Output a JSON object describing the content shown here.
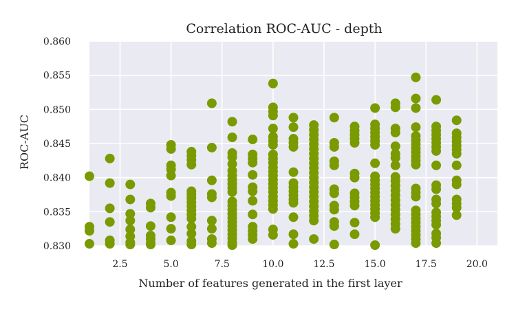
{
  "chart_data": {
    "type": "scatter",
    "title": "Correlation ROC-AUC - depth",
    "xlabel": "Number of features generated in the first layer",
    "ylabel": "ROC-AUC",
    "xlim": [
      1.0,
      21.0
    ],
    "ylim": [
      0.83,
      0.86
    ],
    "xticks": [
      2.5,
      5.0,
      7.5,
      10.0,
      12.5,
      15.0,
      17.5,
      20.0
    ],
    "xtick_labels": [
      "2.5",
      "5.0",
      "7.5",
      "10.0",
      "12.5",
      "15.0",
      "17.5",
      "20.0"
    ],
    "yticks": [
      0.83,
      0.835,
      0.84,
      0.845,
      0.85,
      0.855,
      0.86
    ],
    "ytick_labels": [
      "0.830",
      "0.835",
      "0.840",
      "0.845",
      "0.850",
      "0.855",
      "0.860"
    ],
    "grid": true,
    "background": "#eaeaf2",
    "marker_color": "#7a9a01",
    "points": [
      {
        "x": 1,
        "y": 0.8402
      },
      {
        "x": 1,
        "y": 0.8328
      },
      {
        "x": 1,
        "y": 0.8322
      },
      {
        "x": 1,
        "y": 0.8303
      },
      {
        "x": 2,
        "y": 0.8428
      },
      {
        "x": 2,
        "y": 0.8392
      },
      {
        "x": 2,
        "y": 0.8355
      },
      {
        "x": 2,
        "y": 0.8335
      },
      {
        "x": 2,
        "y": 0.8308
      },
      {
        "x": 2,
        "y": 0.8303
      },
      {
        "x": 3,
        "y": 0.839
      },
      {
        "x": 3,
        "y": 0.8368
      },
      {
        "x": 3,
        "y": 0.8347
      },
      {
        "x": 3,
        "y": 0.8337
      },
      {
        "x": 3,
        "y": 0.8324
      },
      {
        "x": 3,
        "y": 0.8314
      },
      {
        "x": 3,
        "y": 0.8305
      },
      {
        "x": 3,
        "y": 0.8302
      },
      {
        "x": 4,
        "y": 0.8362
      },
      {
        "x": 4,
        "y": 0.8356
      },
      {
        "x": 4,
        "y": 0.8329
      },
      {
        "x": 4,
        "y": 0.8315
      },
      {
        "x": 4,
        "y": 0.831
      },
      {
        "x": 4,
        "y": 0.8304
      },
      {
        "x": 4,
        "y": 0.8302
      },
      {
        "x": 5,
        "y": 0.8448
      },
      {
        "x": 5,
        "y": 0.8442
      },
      {
        "x": 5,
        "y": 0.8418
      },
      {
        "x": 5,
        "y": 0.8412
      },
      {
        "x": 5,
        "y": 0.8403
      },
      {
        "x": 5,
        "y": 0.8378
      },
      {
        "x": 5,
        "y": 0.8373
      },
      {
        "x": 5,
        "y": 0.8342
      },
      {
        "x": 5,
        "y": 0.8325
      },
      {
        "x": 5,
        "y": 0.8308
      },
      {
        "x": 6,
        "y": 0.8438
      },
      {
        "x": 6,
        "y": 0.8432
      },
      {
        "x": 6,
        "y": 0.8426
      },
      {
        "x": 6,
        "y": 0.8419
      },
      {
        "x": 6,
        "y": 0.838
      },
      {
        "x": 6,
        "y": 0.8375
      },
      {
        "x": 6,
        "y": 0.837
      },
      {
        "x": 6,
        "y": 0.8364
      },
      {
        "x": 6,
        "y": 0.8358
      },
      {
        "x": 6,
        "y": 0.8352
      },
      {
        "x": 6,
        "y": 0.8346
      },
      {
        "x": 6,
        "y": 0.834
      },
      {
        "x": 6,
        "y": 0.8328
      },
      {
        "x": 6,
        "y": 0.8318
      },
      {
        "x": 6,
        "y": 0.8307
      },
      {
        "x": 6,
        "y": 0.8302
      },
      {
        "x": 7,
        "y": 0.8509
      },
      {
        "x": 7,
        "y": 0.8444
      },
      {
        "x": 7,
        "y": 0.8396
      },
      {
        "x": 7,
        "y": 0.8376
      },
      {
        "x": 7,
        "y": 0.8371
      },
      {
        "x": 7,
        "y": 0.8337
      },
      {
        "x": 7,
        "y": 0.8325
      },
      {
        "x": 7,
        "y": 0.831
      },
      {
        "x": 7,
        "y": 0.8304
      },
      {
        "x": 8,
        "y": 0.8482
      },
      {
        "x": 8,
        "y": 0.8459
      },
      {
        "x": 8,
        "y": 0.8436
      },
      {
        "x": 8,
        "y": 0.843
      },
      {
        "x": 8,
        "y": 0.842
      },
      {
        "x": 8,
        "y": 0.841
      },
      {
        "x": 8,
        "y": 0.8403
      },
      {
        "x": 8,
        "y": 0.8397
      },
      {
        "x": 8,
        "y": 0.8391
      },
      {
        "x": 8,
        "y": 0.8385
      },
      {
        "x": 8,
        "y": 0.8379
      },
      {
        "x": 8,
        "y": 0.8365
      },
      {
        "x": 8,
        "y": 0.8359
      },
      {
        "x": 8,
        "y": 0.8353
      },
      {
        "x": 8,
        "y": 0.8347
      },
      {
        "x": 8,
        "y": 0.8341
      },
      {
        "x": 8,
        "y": 0.8335
      },
      {
        "x": 8,
        "y": 0.8329
      },
      {
        "x": 8,
        "y": 0.8323
      },
      {
        "x": 8,
        "y": 0.8317
      },
      {
        "x": 8,
        "y": 0.8311
      },
      {
        "x": 8,
        "y": 0.8305
      },
      {
        "x": 8,
        "y": 0.8301
      },
      {
        "x": 9,
        "y": 0.8456
      },
      {
        "x": 9,
        "y": 0.8434
      },
      {
        "x": 9,
        "y": 0.8428
      },
      {
        "x": 9,
        "y": 0.8422
      },
      {
        "x": 9,
        "y": 0.8404
      },
      {
        "x": 9,
        "y": 0.8386
      },
      {
        "x": 9,
        "y": 0.838
      },
      {
        "x": 9,
        "y": 0.8366
      },
      {
        "x": 9,
        "y": 0.8346
      },
      {
        "x": 9,
        "y": 0.8328
      },
      {
        "x": 9,
        "y": 0.8322
      },
      {
        "x": 9,
        "y": 0.8316
      },
      {
        "x": 9,
        "y": 0.831
      },
      {
        "x": 10,
        "y": 0.8538
      },
      {
        "x": 10,
        "y": 0.8503
      },
      {
        "x": 10,
        "y": 0.8497
      },
      {
        "x": 10,
        "y": 0.8491
      },
      {
        "x": 10,
        "y": 0.8472
      },
      {
        "x": 10,
        "y": 0.846
      },
      {
        "x": 10,
        "y": 0.8454
      },
      {
        "x": 10,
        "y": 0.8448
      },
      {
        "x": 10,
        "y": 0.8434
      },
      {
        "x": 10,
        "y": 0.8428
      },
      {
        "x": 10,
        "y": 0.8422
      },
      {
        "x": 10,
        "y": 0.8415
      },
      {
        "x": 10,
        "y": 0.8409
      },
      {
        "x": 10,
        "y": 0.8403
      },
      {
        "x": 10,
        "y": 0.8397
      },
      {
        "x": 10,
        "y": 0.8391
      },
      {
        "x": 10,
        "y": 0.8385
      },
      {
        "x": 10,
        "y": 0.8379
      },
      {
        "x": 10,
        "y": 0.8372
      },
      {
        "x": 10,
        "y": 0.8366
      },
      {
        "x": 10,
        "y": 0.836
      },
      {
        "x": 10,
        "y": 0.8354
      },
      {
        "x": 10,
        "y": 0.8324
      },
      {
        "x": 10,
        "y": 0.8316
      },
      {
        "x": 11,
        "y": 0.8488
      },
      {
        "x": 11,
        "y": 0.8474
      },
      {
        "x": 11,
        "y": 0.8457
      },
      {
        "x": 11,
        "y": 0.8451
      },
      {
        "x": 11,
        "y": 0.8445
      },
      {
        "x": 11,
        "y": 0.8408
      },
      {
        "x": 11,
        "y": 0.8392
      },
      {
        "x": 11,
        "y": 0.8386
      },
      {
        "x": 11,
        "y": 0.838
      },
      {
        "x": 11,
        "y": 0.8374
      },
      {
        "x": 11,
        "y": 0.8368
      },
      {
        "x": 11,
        "y": 0.8363
      },
      {
        "x": 11,
        "y": 0.8342
      },
      {
        "x": 11,
        "y": 0.8317
      },
      {
        "x": 11,
        "y": 0.8303
      },
      {
        "x": 12,
        "y": 0.8477
      },
      {
        "x": 12,
        "y": 0.847
      },
      {
        "x": 12,
        "y": 0.8463
      },
      {
        "x": 12,
        "y": 0.8456
      },
      {
        "x": 12,
        "y": 0.8449
      },
      {
        "x": 12,
        "y": 0.8442
      },
      {
        "x": 12,
        "y": 0.8435
      },
      {
        "x": 12,
        "y": 0.8428
      },
      {
        "x": 12,
        "y": 0.8421
      },
      {
        "x": 12,
        "y": 0.8414
      },
      {
        "x": 12,
        "y": 0.8407
      },
      {
        "x": 12,
        "y": 0.84
      },
      {
        "x": 12,
        "y": 0.8393
      },
      {
        "x": 12,
        "y": 0.8386
      },
      {
        "x": 12,
        "y": 0.8379
      },
      {
        "x": 12,
        "y": 0.8372
      },
      {
        "x": 12,
        "y": 0.8365
      },
      {
        "x": 12,
        "y": 0.8358
      },
      {
        "x": 12,
        "y": 0.8351
      },
      {
        "x": 12,
        "y": 0.8344
      },
      {
        "x": 12,
        "y": 0.8337
      },
      {
        "x": 12,
        "y": 0.831
      },
      {
        "x": 13,
        "y": 0.8488
      },
      {
        "x": 13,
        "y": 0.8451
      },
      {
        "x": 13,
        "y": 0.8445
      },
      {
        "x": 13,
        "y": 0.8424
      },
      {
        "x": 13,
        "y": 0.8418
      },
      {
        "x": 13,
        "y": 0.8383
      },
      {
        "x": 13,
        "y": 0.8377
      },
      {
        "x": 13,
        "y": 0.8359
      },
      {
        "x": 13,
        "y": 0.8353
      },
      {
        "x": 13,
        "y": 0.8335
      },
      {
        "x": 13,
        "y": 0.8329
      },
      {
        "x": 13,
        "y": 0.8302
      },
      {
        "x": 14,
        "y": 0.8475
      },
      {
        "x": 14,
        "y": 0.8469
      },
      {
        "x": 14,
        "y": 0.8463
      },
      {
        "x": 14,
        "y": 0.8457
      },
      {
        "x": 14,
        "y": 0.8451
      },
      {
        "x": 14,
        "y": 0.8406
      },
      {
        "x": 14,
        "y": 0.84
      },
      {
        "x": 14,
        "y": 0.8377
      },
      {
        "x": 14,
        "y": 0.8371
      },
      {
        "x": 14,
        "y": 0.8365
      },
      {
        "x": 14,
        "y": 0.8359
      },
      {
        "x": 14,
        "y": 0.8334
      },
      {
        "x": 14,
        "y": 0.8317
      },
      {
        "x": 15,
        "y": 0.8502
      },
      {
        "x": 15,
        "y": 0.8478
      },
      {
        "x": 15,
        "y": 0.8472
      },
      {
        "x": 15,
        "y": 0.8466
      },
      {
        "x": 15,
        "y": 0.846
      },
      {
        "x": 15,
        "y": 0.8454
      },
      {
        "x": 15,
        "y": 0.8448
      },
      {
        "x": 15,
        "y": 0.8421
      },
      {
        "x": 15,
        "y": 0.8402
      },
      {
        "x": 15,
        "y": 0.8396
      },
      {
        "x": 15,
        "y": 0.839
      },
      {
        "x": 15,
        "y": 0.8384
      },
      {
        "x": 15,
        "y": 0.8378
      },
      {
        "x": 15,
        "y": 0.8372
      },
      {
        "x": 15,
        "y": 0.8366
      },
      {
        "x": 15,
        "y": 0.836
      },
      {
        "x": 15,
        "y": 0.8354
      },
      {
        "x": 15,
        "y": 0.8348
      },
      {
        "x": 15,
        "y": 0.8342
      },
      {
        "x": 15,
        "y": 0.8301
      },
      {
        "x": 16,
        "y": 0.8509
      },
      {
        "x": 16,
        "y": 0.8503
      },
      {
        "x": 16,
        "y": 0.8472
      },
      {
        "x": 16,
        "y": 0.8466
      },
      {
        "x": 16,
        "y": 0.8446
      },
      {
        "x": 16,
        "y": 0.8435
      },
      {
        "x": 16,
        "y": 0.8429
      },
      {
        "x": 16,
        "y": 0.8418
      },
      {
        "x": 16,
        "y": 0.8401
      },
      {
        "x": 16,
        "y": 0.8395
      },
      {
        "x": 16,
        "y": 0.8388
      },
      {
        "x": 16,
        "y": 0.8381
      },
      {
        "x": 16,
        "y": 0.8374
      },
      {
        "x": 16,
        "y": 0.8367
      },
      {
        "x": 16,
        "y": 0.836
      },
      {
        "x": 16,
        "y": 0.8353
      },
      {
        "x": 16,
        "y": 0.8346
      },
      {
        "x": 16,
        "y": 0.8339
      },
      {
        "x": 16,
        "y": 0.8332
      },
      {
        "x": 16,
        "y": 0.8325
      },
      {
        "x": 17,
        "y": 0.8547
      },
      {
        "x": 17,
        "y": 0.8516
      },
      {
        "x": 17,
        "y": 0.8502
      },
      {
        "x": 17,
        "y": 0.8474
      },
      {
        "x": 17,
        "y": 0.8461
      },
      {
        "x": 17,
        "y": 0.8455
      },
      {
        "x": 17,
        "y": 0.8449
      },
      {
        "x": 17,
        "y": 0.8443
      },
      {
        "x": 17,
        "y": 0.8437
      },
      {
        "x": 17,
        "y": 0.8431
      },
      {
        "x": 17,
        "y": 0.8425
      },
      {
        "x": 17,
        "y": 0.8419
      },
      {
        "x": 17,
        "y": 0.8384
      },
      {
        "x": 17,
        "y": 0.8378
      },
      {
        "x": 17,
        "y": 0.8372
      },
      {
        "x": 17,
        "y": 0.8352
      },
      {
        "x": 17,
        "y": 0.8346
      },
      {
        "x": 17,
        "y": 0.834
      },
      {
        "x": 17,
        "y": 0.8334
      },
      {
        "x": 17,
        "y": 0.8328
      },
      {
        "x": 17,
        "y": 0.8322
      },
      {
        "x": 17,
        "y": 0.8316
      },
      {
        "x": 17,
        "y": 0.831
      },
      {
        "x": 17,
        "y": 0.8304
      },
      {
        "x": 18,
        "y": 0.8514
      },
      {
        "x": 18,
        "y": 0.8475
      },
      {
        "x": 18,
        "y": 0.8469
      },
      {
        "x": 18,
        "y": 0.8463
      },
      {
        "x": 18,
        "y": 0.8457
      },
      {
        "x": 18,
        "y": 0.8451
      },
      {
        "x": 18,
        "y": 0.8445
      },
      {
        "x": 18,
        "y": 0.8439
      },
      {
        "x": 18,
        "y": 0.8418
      },
      {
        "x": 18,
        "y": 0.8389
      },
      {
        "x": 18,
        "y": 0.8383
      },
      {
        "x": 18,
        "y": 0.8368
      },
      {
        "x": 18,
        "y": 0.8362
      },
      {
        "x": 18,
        "y": 0.8349
      },
      {
        "x": 18,
        "y": 0.8343
      },
      {
        "x": 18,
        "y": 0.8337
      },
      {
        "x": 18,
        "y": 0.8331
      },
      {
        "x": 18,
        "y": 0.8318
      },
      {
        "x": 18,
        "y": 0.8312
      },
      {
        "x": 18,
        "y": 0.8304
      },
      {
        "x": 19,
        "y": 0.8484
      },
      {
        "x": 19,
        "y": 0.8465
      },
      {
        "x": 19,
        "y": 0.8459
      },
      {
        "x": 19,
        "y": 0.8453
      },
      {
        "x": 19,
        "y": 0.8447
      },
      {
        "x": 19,
        "y": 0.8441
      },
      {
        "x": 19,
        "y": 0.8435
      },
      {
        "x": 19,
        "y": 0.8418
      },
      {
        "x": 19,
        "y": 0.8396
      },
      {
        "x": 19,
        "y": 0.839
      },
      {
        "x": 19,
        "y": 0.8368
      },
      {
        "x": 19,
        "y": 0.8362
      },
      {
        "x": 19,
        "y": 0.8356
      },
      {
        "x": 19,
        "y": 0.8345
      }
    ]
  }
}
